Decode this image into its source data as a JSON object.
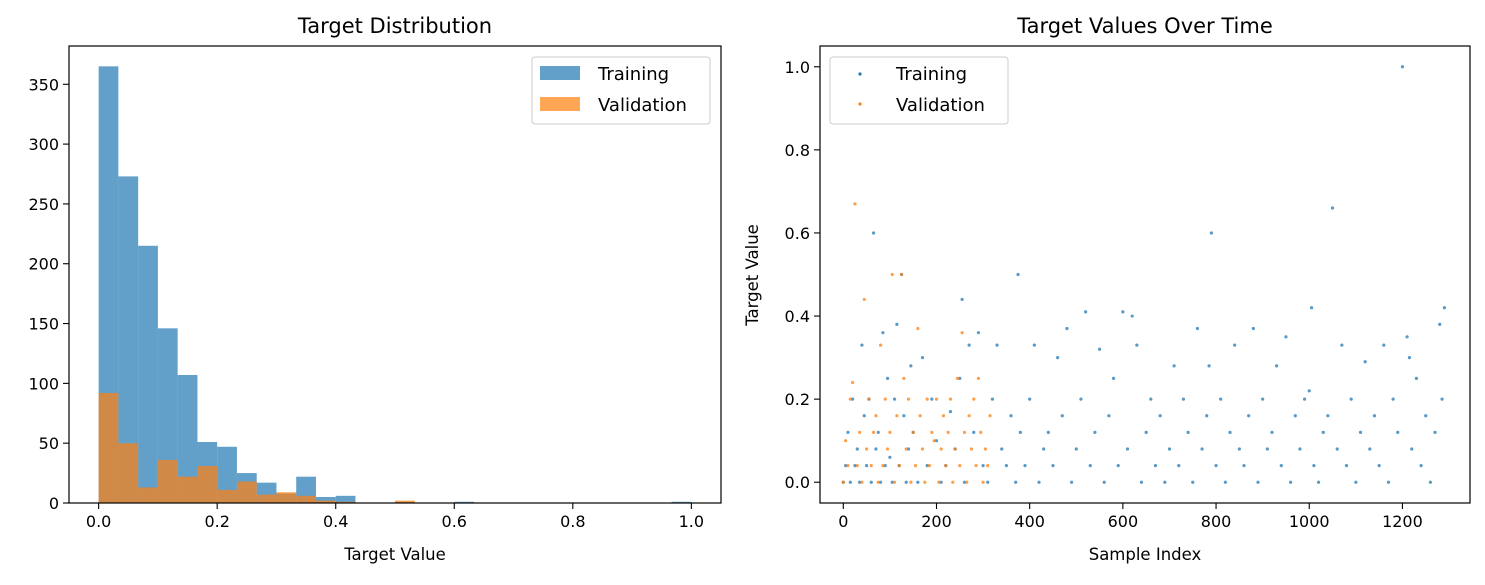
{
  "chart_data": [
    {
      "type": "bar",
      "subtype": "histogram",
      "title": "Target Distribution",
      "xlabel": "Target Value",
      "ylabel": "",
      "xlim": [
        -0.05,
        1.05
      ],
      "ylim": [
        0,
        382
      ],
      "xticks": [
        0.0,
        0.2,
        0.4,
        0.6,
        0.8,
        1.0
      ],
      "xtick_labels": [
        "0.0",
        "0.2",
        "0.4",
        "0.6",
        "0.8",
        "1.0"
      ],
      "yticks": [
        0,
        50,
        100,
        150,
        200,
        250,
        300,
        350
      ],
      "ytick_labels": [
        "0",
        "50",
        "100",
        "150",
        "200",
        "250",
        "300",
        "350"
      ],
      "grid": false,
      "legend_position": "top-right",
      "bin_edges": [
        0.0,
        0.0333,
        0.0667,
        0.1,
        0.1333,
        0.1667,
        0.2,
        0.2333,
        0.2667,
        0.3,
        0.3333,
        0.3667,
        0.4,
        0.4333,
        0.4667,
        0.5,
        0.5333,
        0.5667,
        0.6,
        0.6333,
        0.6667,
        0.7,
        0.7333,
        0.7667,
        0.8,
        0.8333,
        0.8667,
        0.9,
        0.9333,
        0.9667,
        1.0
      ],
      "series": [
        {
          "name": "Training",
          "color": "#1f77b4",
          "opacity": 0.7,
          "values": [
            365,
            273,
            215,
            146,
            107,
            51,
            47,
            25,
            17,
            8,
            22,
            5,
            6,
            0,
            0,
            1,
            0,
            0,
            1,
            0,
            0,
            0,
            0,
            0,
            0,
            0,
            0,
            0,
            0,
            1
          ]
        },
        {
          "name": "Validation",
          "color": "#ff7f0e",
          "opacity": 0.7,
          "values": [
            92,
            50,
            13,
            36,
            22,
            31,
            11,
            18,
            7,
            9,
            6,
            2,
            1,
            0,
            0,
            2,
            0,
            0,
            0,
            0,
            0,
            0,
            0,
            0,
            0,
            0,
            0,
            0,
            0,
            0
          ]
        }
      ]
    },
    {
      "type": "scatter",
      "title": "Target Values Over Time",
      "xlabel": "Sample Index",
      "ylabel": "Target Value",
      "xlim": [
        -50,
        1345
      ],
      "ylim": [
        -0.05,
        1.05
      ],
      "xticks": [
        0,
        200,
        400,
        600,
        800,
        1000,
        1200
      ],
      "xtick_labels": [
        "0",
        "200",
        "400",
        "600",
        "800",
        "1000",
        "1200"
      ],
      "yticks": [
        0.0,
        0.2,
        0.4,
        0.6,
        0.8,
        1.0
      ],
      "ytick_labels": [
        "0.0",
        "0.2",
        "0.4",
        "0.6",
        "0.8",
        "1.0"
      ],
      "grid": false,
      "legend_position": "top-left",
      "series": [
        {
          "name": "Training",
          "color": "#1f77b4",
          "points": [
            [
              0,
              0
            ],
            [
              5,
              0.04
            ],
            [
              10,
              0.12
            ],
            [
              15,
              0
            ],
            [
              20,
              0.2
            ],
            [
              25,
              0.04
            ],
            [
              30,
              0.08
            ],
            [
              35,
              0
            ],
            [
              40,
              0.33
            ],
            [
              45,
              0.16
            ],
            [
              50,
              0.04
            ],
            [
              55,
              0.2
            ],
            [
              60,
              0
            ],
            [
              65,
              0.6
            ],
            [
              70,
              0.08
            ],
            [
              75,
              0.12
            ],
            [
              80,
              0
            ],
            [
              85,
              0.36
            ],
            [
              90,
              0.04
            ],
            [
              95,
              0.25
            ],
            [
              100,
              0.06
            ],
            [
              105,
              0
            ],
            [
              110,
              0.2
            ],
            [
              115,
              0.38
            ],
            [
              120,
              0.04
            ],
            [
              125,
              0.5
            ],
            [
              130,
              0.16
            ],
            [
              135,
              0
            ],
            [
              140,
              0.08
            ],
            [
              145,
              0.28
            ],
            [
              150,
              0.12
            ],
            [
              160,
              0
            ],
            [
              170,
              0.3
            ],
            [
              180,
              0.04
            ],
            [
              190,
              0.2
            ],
            [
              200,
              0.1
            ],
            [
              210,
              0
            ],
            [
              220,
              0.04
            ],
            [
              230,
              0.17
            ],
            [
              240,
              0.08
            ],
            [
              250,
              0.25
            ],
            [
              255,
              0.44
            ],
            [
              260,
              0
            ],
            [
              270,
              0.33
            ],
            [
              280,
              0.12
            ],
            [
              290,
              0.36
            ],
            [
              300,
              0.04
            ],
            [
              310,
              0
            ],
            [
              320,
              0.2
            ],
            [
              330,
              0.33
            ],
            [
              340,
              0.08
            ],
            [
              350,
              0.04
            ],
            [
              360,
              0.16
            ],
            [
              370,
              0
            ],
            [
              375,
              0.5
            ],
            [
              380,
              0.12
            ],
            [
              390,
              0.04
            ],
            [
              400,
              0.2
            ],
            [
              410,
              0.33
            ],
            [
              420,
              0
            ],
            [
              430,
              0.08
            ],
            [
              440,
              0.12
            ],
            [
              450,
              0.04
            ],
            [
              460,
              0.3
            ],
            [
              470,
              0.16
            ],
            [
              480,
              0.37
            ],
            [
              490,
              0
            ],
            [
              500,
              0.08
            ],
            [
              510,
              0.2
            ],
            [
              520,
              0.41
            ],
            [
              530,
              0.04
            ],
            [
              540,
              0.12
            ],
            [
              550,
              0.32
            ],
            [
              560,
              0
            ],
            [
              570,
              0.16
            ],
            [
              580,
              0.25
            ],
            [
              590,
              0.04
            ],
            [
              600,
              0.41
            ],
            [
              610,
              0.08
            ],
            [
              620,
              0.4
            ],
            [
              630,
              0.33
            ],
            [
              640,
              0
            ],
            [
              650,
              0.12
            ],
            [
              660,
              0.2
            ],
            [
              670,
              0.04
            ],
            [
              680,
              0.16
            ],
            [
              690,
              0
            ],
            [
              700,
              0.08
            ],
            [
              710,
              0.28
            ],
            [
              720,
              0.04
            ],
            [
              730,
              0.2
            ],
            [
              740,
              0.12
            ],
            [
              750,
              0
            ],
            [
              760,
              0.37
            ],
            [
              770,
              0.08
            ],
            [
              780,
              0.16
            ],
            [
              785,
              0.28
            ],
            [
              790,
              0.6
            ],
            [
              800,
              0.04
            ],
            [
              810,
              0.2
            ],
            [
              820,
              0
            ],
            [
              830,
              0.12
            ],
            [
              840,
              0.33
            ],
            [
              850,
              0.08
            ],
            [
              860,
              0.04
            ],
            [
              870,
              0.16
            ],
            [
              880,
              0.37
            ],
            [
              890,
              0
            ],
            [
              900,
              0.2
            ],
            [
              910,
              0.08
            ],
            [
              920,
              0.12
            ],
            [
              930,
              0.28
            ],
            [
              940,
              0.04
            ],
            [
              950,
              0.35
            ],
            [
              960,
              0
            ],
            [
              970,
              0.16
            ],
            [
              980,
              0.08
            ],
            [
              990,
              0.2
            ],
            [
              1000,
              0.22
            ],
            [
              1005,
              0.42
            ],
            [
              1010,
              0.04
            ],
            [
              1020,
              0
            ],
            [
              1030,
              0.12
            ],
            [
              1040,
              0.16
            ],
            [
              1050,
              0.66
            ],
            [
              1060,
              0.08
            ],
            [
              1070,
              0.33
            ],
            [
              1080,
              0.04
            ],
            [
              1090,
              0.2
            ],
            [
              1100,
              0
            ],
            [
              1110,
              0.12
            ],
            [
              1120,
              0.29
            ],
            [
              1130,
              0.08
            ],
            [
              1140,
              0.16
            ],
            [
              1150,
              0.04
            ],
            [
              1160,
              0.33
            ],
            [
              1170,
              0
            ],
            [
              1180,
              0.2
            ],
            [
              1190,
              0.12
            ],
            [
              1200,
              1.0
            ],
            [
              1210,
              0.35
            ],
            [
              1215,
              0.3
            ],
            [
              1220,
              0.08
            ],
            [
              1230,
              0.25
            ],
            [
              1240,
              0.04
            ],
            [
              1250,
              0.16
            ],
            [
              1260,
              0
            ],
            [
              1270,
              0.12
            ],
            [
              1280,
              0.38
            ],
            [
              1285,
              0.2
            ],
            [
              1290,
              0.42
            ]
          ]
        },
        {
          "name": "Validation",
          "color": "#ff7f0e",
          "points": [
            [
              0,
              0
            ],
            [
              5,
              0.1
            ],
            [
              10,
              0.04
            ],
            [
              15,
              0.2
            ],
            [
              20,
              0.24
            ],
            [
              25,
              0.67
            ],
            [
              30,
              0.04
            ],
            [
              35,
              0.12
            ],
            [
              40,
              0
            ],
            [
              45,
              0.44
            ],
            [
              50,
              0.08
            ],
            [
              55,
              0.2
            ],
            [
              60,
              0.04
            ],
            [
              65,
              0.12
            ],
            [
              70,
              0.16
            ],
            [
              75,
              0
            ],
            [
              80,
              0.33
            ],
            [
              85,
              0.04
            ],
            [
              90,
              0.2
            ],
            [
              95,
              0.08
            ],
            [
              100,
              0.12
            ],
            [
              105,
              0.5
            ],
            [
              110,
              0
            ],
            [
              115,
              0.16
            ],
            [
              120,
              0.04
            ],
            [
              125,
              0.5
            ],
            [
              130,
              0.25
            ],
            [
              135,
              0.08
            ],
            [
              140,
              0.2
            ],
            [
              145,
              0
            ],
            [
              150,
              0.12
            ],
            [
              155,
              0.04
            ],
            [
              160,
              0.37
            ],
            [
              165,
              0.16
            ],
            [
              170,
              0.08
            ],
            [
              175,
              0
            ],
            [
              180,
              0.2
            ],
            [
              185,
              0.04
            ],
            [
              190,
              0.12
            ],
            [
              195,
              0.1
            ],
            [
              200,
              0.2
            ],
            [
              205,
              0
            ],
            [
              210,
              0.08
            ],
            [
              215,
              0.16
            ],
            [
              220,
              0.04
            ],
            [
              225,
              0.12
            ],
            [
              230,
              0.2
            ],
            [
              235,
              0
            ],
            [
              240,
              0.08
            ],
            [
              245,
              0.25
            ],
            [
              250,
              0.04
            ],
            [
              255,
              0.36
            ],
            [
              260,
              0.12
            ],
            [
              265,
              0
            ],
            [
              270,
              0.16
            ],
            [
              275,
              0.08
            ],
            [
              280,
              0.2
            ],
            [
              285,
              0.04
            ],
            [
              290,
              0.25
            ],
            [
              295,
              0.12
            ],
            [
              300,
              0
            ],
            [
              305,
              0.08
            ],
            [
              310,
              0.04
            ],
            [
              315,
              0.16
            ]
          ]
        }
      ]
    }
  ]
}
